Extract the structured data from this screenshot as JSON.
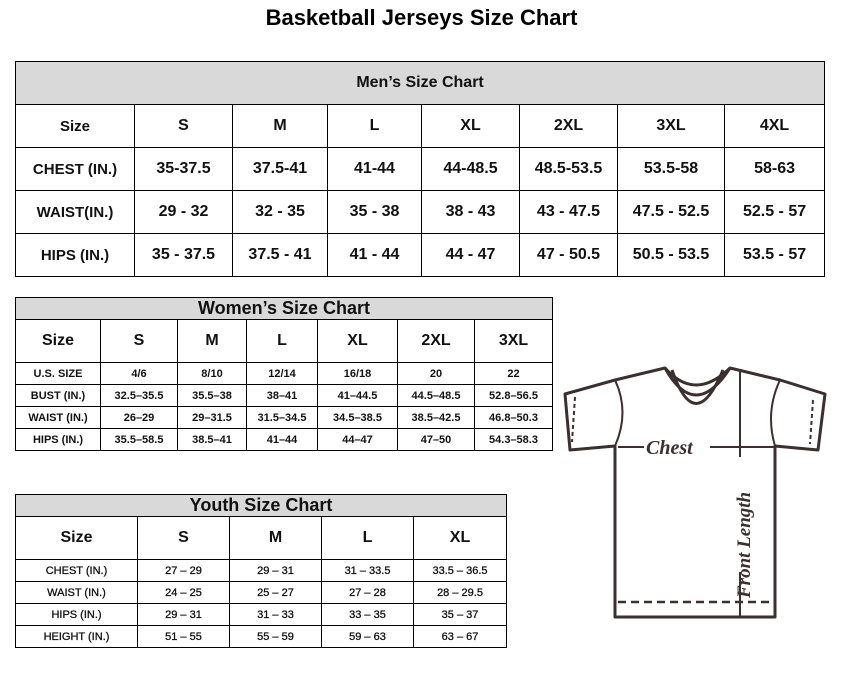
{
  "title": "Basketball Jerseys Size Chart",
  "men": {
    "title": "Men’s Size Chart",
    "header": [
      "Size",
      "S",
      "M",
      "L",
      "XL",
      "2XL",
      "3XL",
      "4XL"
    ],
    "rows": [
      [
        "CHEST (IN.)",
        "35-37.5",
        "37.5-41",
        "41-44",
        "44-48.5",
        "48.5-53.5",
        "53.5-58",
        "58-63"
      ],
      [
        "WAIST(IN.)",
        "29 - 32",
        "32 - 35",
        "35 - 38",
        "38 - 43",
        "43 - 47.5",
        "47.5 - 52.5",
        "52.5 - 57"
      ],
      [
        "HIPS (IN.)",
        "35 - 37.5",
        "37.5 - 41",
        "41 - 44",
        "44 - 47",
        "47 - 50.5",
        "50.5 - 53.5",
        "53.5 - 57"
      ]
    ]
  },
  "women": {
    "title": "Women’s Size Chart",
    "header": [
      "Size",
      "S",
      "M",
      "L",
      "XL",
      "2XL",
      "3XL"
    ],
    "rows": [
      [
        "U.S.  SIZE",
        "4/6",
        "8/10",
        "12/14",
        "16/18",
        "20",
        "22"
      ],
      [
        "BUST  (IN.)",
        "32.5–35.5",
        "35.5–38",
        "38–41",
        "41–44.5",
        "44.5–48.5",
        "52.8–56.5"
      ],
      [
        "WAIST  (IN.)",
        "26–29",
        "29–31.5",
        "31.5–34.5",
        "34.5–38.5",
        "38.5–42.5",
        "46.8–50.3"
      ],
      [
        "HIPS  (IN.)",
        "35.5–58.5",
        "38.5–41",
        "41–44",
        "44–47",
        "47–50",
        "54.3–58.3"
      ]
    ]
  },
  "youth": {
    "title": "Youth Size Chart",
    "header": [
      "Size",
      "S",
      "M",
      "L",
      "XL"
    ],
    "rows": [
      [
        "CHEST  (IN.)",
        "27  –  29",
        "29  –  31",
        "31  –  33.5",
        "33.5  –  36.5"
      ],
      [
        "WAIST  (IN.)",
        "24  –  25",
        "25  –  27",
        "27  –  28",
        "28  –  29.5"
      ],
      [
        "HIPS  (IN.)",
        "29  –  31",
        "31  –  33",
        "33  –  35",
        "35  –  37"
      ],
      [
        "HEIGHT  (IN.)",
        "51  –  55",
        "55  –  59",
        "59  –  63",
        "63  –  67"
      ]
    ]
  },
  "shirt": {
    "chest_label": "Chest",
    "length_label": "Front Length"
  },
  "colors": {
    "header_bg": "#d9d9d9",
    "shirt_stroke": "#3a3030"
  }
}
